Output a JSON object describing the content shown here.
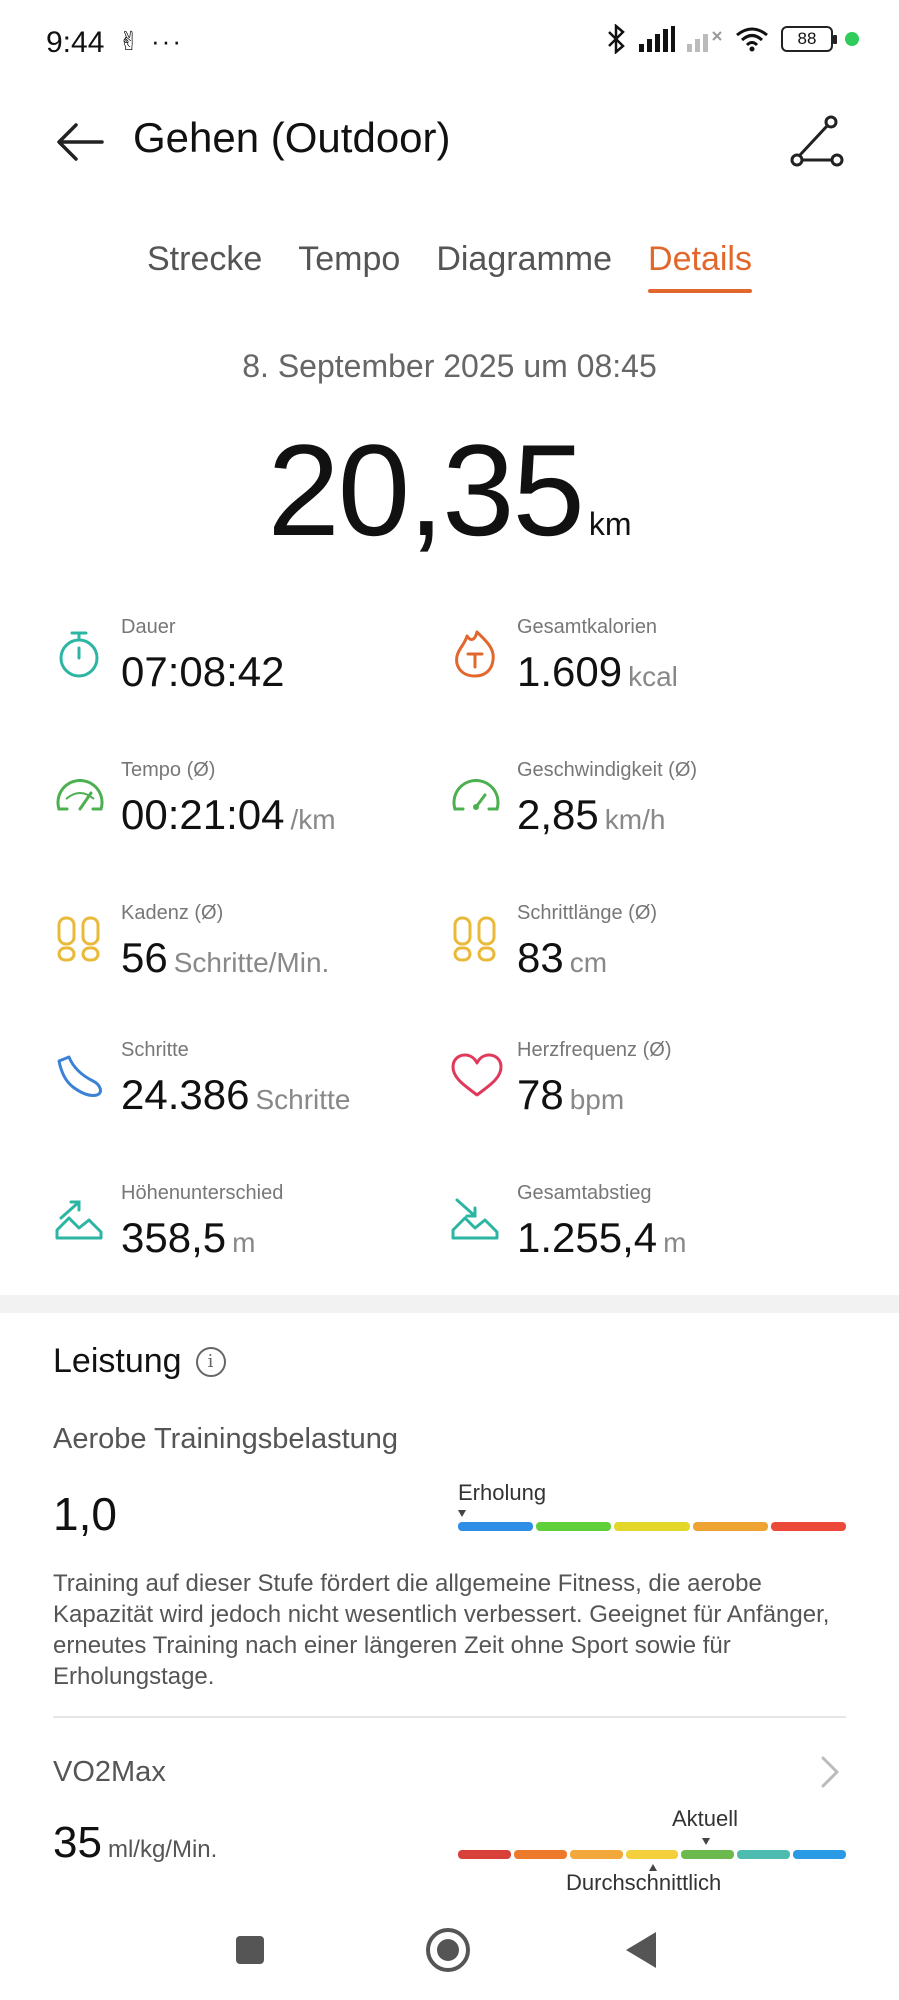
{
  "status_bar": {
    "time": "9:44",
    "extra": "✌ ···",
    "battery": "88"
  },
  "header": {
    "title": "Gehen (Outdoor)"
  },
  "tabs": [
    {
      "label": "Strecke",
      "active": false
    },
    {
      "label": "Tempo",
      "active": false
    },
    {
      "label": "Diagramme",
      "active": false
    },
    {
      "label": "Details",
      "active": true
    }
  ],
  "summary": {
    "date": "8. September 2025 um 08:45",
    "distance": "20,35",
    "distance_unit": "km"
  },
  "stats": [
    {
      "label": "Dauer",
      "value": "07:08:42",
      "unit": "",
      "icon": "stopwatch-icon"
    },
    {
      "label": "Gesamtkalorien",
      "value": "1.609",
      "unit": "kcal",
      "icon": "flame-icon"
    },
    {
      "label": "Tempo (Ø)",
      "value": "00:21:04",
      "unit": "/km",
      "icon": "pace-gauge-icon"
    },
    {
      "label": "Geschwindigkeit (Ø)",
      "value": "2,85",
      "unit": "km/h",
      "icon": "speedometer-icon"
    },
    {
      "label": "Kadenz (Ø)",
      "value": "56",
      "unit": "Schritte/Min.",
      "icon": "footprints-icon"
    },
    {
      "label": "Schrittlänge (Ø)",
      "value": "83",
      "unit": "cm",
      "icon": "footprints-icon"
    },
    {
      "label": "Schritte",
      "value": "24.386",
      "unit": "Schritte",
      "icon": "shoe-icon"
    },
    {
      "label": "Herzfrequenz (Ø)",
      "value": "78",
      "unit": "bpm",
      "icon": "heart-icon"
    },
    {
      "label": "Höhenunterschied",
      "value": "358,5",
      "unit": "m",
      "icon": "ascent-icon"
    },
    {
      "label": "Gesamtabstieg",
      "value": "1.255,4",
      "unit": "m",
      "icon": "descent-icon"
    }
  ],
  "performance": {
    "title": "Leistung",
    "training_load": {
      "label": "Aerobe Trainingsbelastung",
      "value": "1,0",
      "level": "Erholung",
      "colors": [
        "#2e8ee6",
        "#5fcf3a",
        "#e3d82a",
        "#eea433",
        "#ea4a37"
      ],
      "description": "Training auf dieser Stufe fördert die allgemeine Fitness, die aerobe Kapazität wird jedoch nicht wesentlich verbessert. Geeignet für Anfänger, erneutes Training nach einer längeren Zeit ohne Sport sowie für Erholungstage."
    },
    "vo2max": {
      "label": "VO2Max",
      "value": "35",
      "unit": "ml/kg/Min.",
      "current_label": "Aktuell",
      "average_label": "Durchschnittlich",
      "colors": [
        "#d8403a",
        "#ec7a2a",
        "#f3a83c",
        "#f2cf3b",
        "#6cba4d",
        "#4dbbb0",
        "#2a9ae4"
      ]
    }
  },
  "colors": {
    "accent": "#e2672c",
    "teal": "#2db5a3",
    "green": "#4caf50",
    "yellow": "#e9b93a",
    "blue": "#3b82d6",
    "red": "#e0395a"
  }
}
